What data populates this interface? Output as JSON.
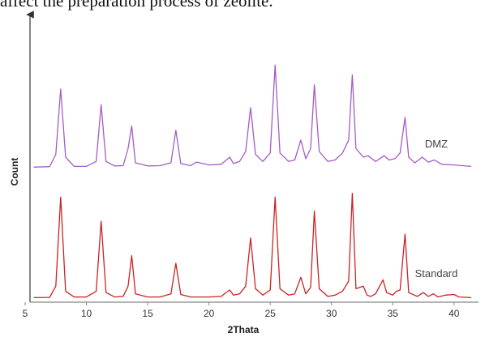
{
  "caption": "affect the preparation process of zeolite.",
  "chart_data": {
    "type": "line",
    "xlabel": "2Thata",
    "ylabel": "Count",
    "xlim": [
      5,
      42
    ],
    "xticks": [
      5,
      10,
      15,
      20,
      25,
      30,
      35,
      40
    ],
    "grid": false,
    "series_label_placement": "inline-right",
    "series": [
      {
        "name": "DMZ",
        "color": "#a45cc6",
        "x": [
          5.7,
          7.0,
          7.5,
          7.9,
          8.3,
          9.0,
          10.0,
          10.8,
          11.2,
          11.6,
          12.3,
          13.0,
          13.4,
          13.7,
          14.0,
          15.0,
          16.0,
          16.9,
          17.3,
          17.7,
          18.5,
          19.0,
          20.0,
          21.0,
          21.7,
          22.0,
          22.5,
          23.0,
          23.4,
          23.8,
          24.4,
          25.0,
          25.4,
          25.8,
          26.5,
          27.0,
          27.5,
          27.9,
          28.3,
          28.6,
          29.0,
          29.7,
          30.3,
          30.9,
          31.4,
          31.7,
          32.0,
          32.6,
          33.0,
          33.6,
          34.3,
          34.7,
          35.2,
          35.6,
          36.0,
          36.3,
          36.8,
          37.4,
          37.9,
          38.4,
          39.0,
          40.0,
          41.4
        ],
        "y": [
          5.0,
          5.3,
          14.0,
          60.0,
          12.0,
          5.5,
          5.5,
          9.0,
          49.0,
          9.0,
          5.8,
          6.0,
          18.0,
          34.0,
          8.0,
          5.8,
          6.0,
          8.0,
          31.0,
          7.5,
          6.0,
          8.5,
          6.5,
          7.0,
          12.0,
          7.5,
          9.0,
          16.0,
          47.0,
          14.0,
          9.0,
          15.0,
          77.0,
          15.0,
          9.0,
          10.0,
          24.0,
          11.0,
          18.0,
          63.0,
          16.0,
          9.0,
          10.0,
          15.0,
          24.0,
          70.0,
          18.0,
          12.0,
          13.0,
          9.0,
          13.0,
          10.0,
          11.0,
          15.0,
          40.0,
          12.0,
          8.0,
          12.0,
          8.5,
          10.0,
          7.0,
          6.5,
          5.5
        ]
      },
      {
        "name": "Standard",
        "color": "#cc2222",
        "x": [
          5.7,
          7.0,
          7.5,
          7.9,
          8.3,
          9.0,
          10.0,
          10.8,
          11.2,
          11.6,
          12.3,
          13.0,
          13.4,
          13.7,
          14.0,
          15.0,
          16.0,
          16.9,
          17.3,
          17.7,
          18.5,
          19.0,
          20.0,
          21.0,
          21.4,
          21.7,
          22.0,
          22.5,
          23.0,
          23.4,
          23.8,
          24.4,
          25.0,
          25.4,
          25.8,
          26.5,
          27.0,
          27.5,
          27.9,
          28.3,
          28.6,
          29.0,
          29.7,
          30.3,
          30.9,
          31.4,
          31.7,
          32.0,
          32.6,
          32.9,
          33.2,
          33.6,
          34.2,
          34.5,
          35.0,
          35.3,
          35.6,
          36.0,
          36.3,
          37.0,
          37.5,
          37.9,
          38.3,
          38.7,
          39.3,
          40.0,
          40.4,
          41.4
        ],
        "y": [
          1.0,
          1.2,
          10.0,
          80.0,
          6.0,
          1.5,
          1.5,
          6.0,
          61.0,
          5.0,
          1.5,
          2.0,
          10.0,
          34.0,
          4.0,
          1.5,
          1.5,
          4.0,
          28.0,
          3.5,
          1.5,
          1.5,
          1.5,
          2.0,
          5.0,
          7.0,
          3.0,
          4.0,
          10.0,
          48.0,
          8.0,
          3.0,
          7.0,
          80.0,
          8.0,
          3.0,
          4.0,
          17.0,
          4.0,
          9.0,
          69.0,
          8.0,
          2.0,
          3.0,
          6.0,
          14.0,
          83.0,
          8.0,
          10.0,
          3.0,
          2.0,
          4.0,
          15.0,
          5.0,
          3.0,
          6.0,
          7.0,
          51.0,
          5.0,
          2.0,
          5.0,
          2.0,
          4.0,
          1.5,
          3.0,
          3.5,
          1.5,
          1.0
        ]
      }
    ]
  }
}
